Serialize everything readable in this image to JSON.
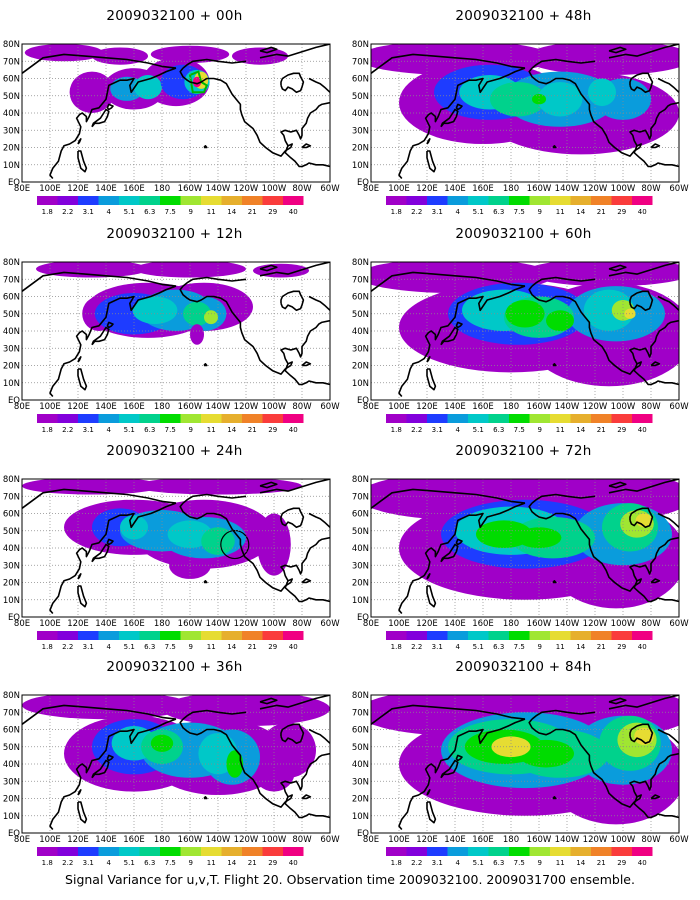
{
  "panels": [
    {
      "id": "p00",
      "title": "2009032100 + 00h"
    },
    {
      "id": "p12",
      "title": "2009032100 + 12h"
    },
    {
      "id": "p24",
      "title": "2009032100 + 24h"
    },
    {
      "id": "p36",
      "title": "2009032100 + 36h"
    },
    {
      "id": "p48",
      "title": "2009032100 + 48h"
    },
    {
      "id": "p60",
      "title": "2009032100 + 60h"
    },
    {
      "id": "p72",
      "title": "2009032100 + 72h"
    },
    {
      "id": "p84",
      "title": "2009032100 + 84h"
    }
  ],
  "x_tick_labels": [
    "80E",
    "100E",
    "120E",
    "140E",
    "160E",
    "180",
    "160W",
    "140W",
    "120W",
    "100W",
    "80W",
    "60W"
  ],
  "y_tick_labels": [
    "EQ",
    "10N",
    "20N",
    "30N",
    "40N",
    "50N",
    "60N",
    "70N",
    "80N"
  ],
  "colorbar": {
    "labels": [
      "1.8",
      "2.2",
      "3.1",
      "4",
      "5.1",
      "6.3",
      "7.5",
      "9",
      "11",
      "14",
      "21",
      "29",
      "40"
    ],
    "colors": [
      "#a000c8",
      "#8200dc",
      "#1e3cff",
      "#0a9cdc",
      "#00c8c8",
      "#00d28c",
      "#00dc00",
      "#a0e632",
      "#e6dc32",
      "#e6af2d",
      "#f08228",
      "#fa3c3c",
      "#f00082"
    ]
  },
  "footer": "Signal Variance for u,v,T. Flight 20. Observation time 2009032100. 2009031700 ensemble."
}
